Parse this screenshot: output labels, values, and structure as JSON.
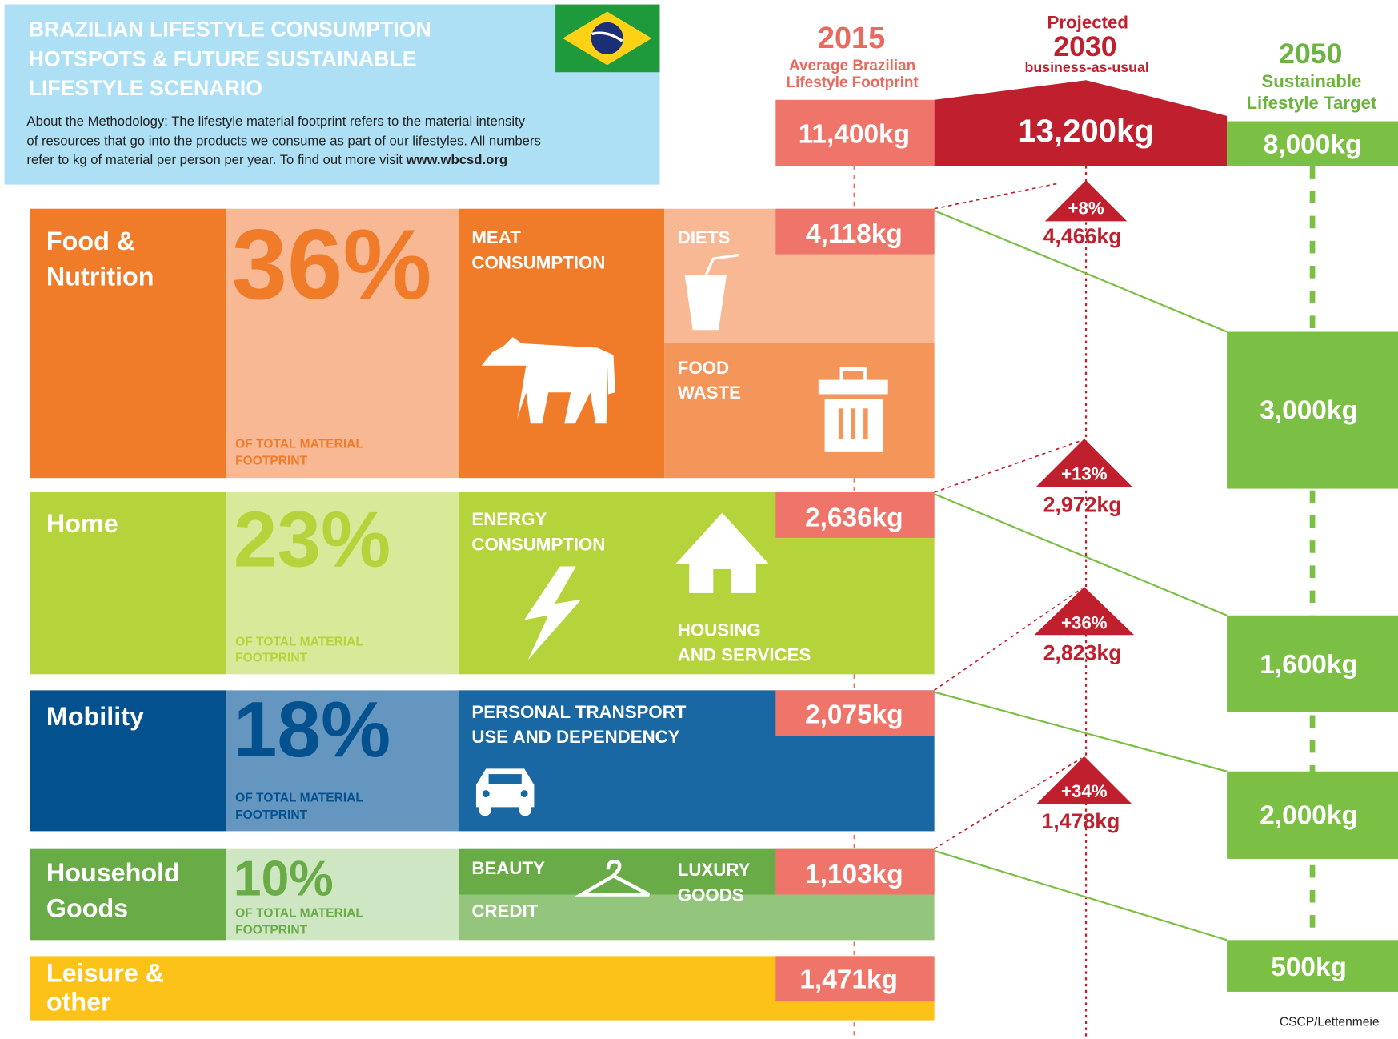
{
  "header": {
    "title_lines": [
      "BRAZILIAN LIFESTYLE CONSUMPTION",
      "HOTSPOTS & FUTURE SUSTAINABLE",
      "LIFESTYLE SCENARIO"
    ],
    "methodology_lines": [
      "About the Methodology: The lifestyle material footprint refers to the material intensity",
      "of resources that go into the products we consume as part of our lifestyles. All numbers",
      "refer to kg of material per person per year. To find out more visit "
    ],
    "link": "www.wbcsd.org"
  },
  "columns": [
    {
      "year": "2015",
      "label_lines": [
        "Average Brazilian",
        "Lifestyle Footprint"
      ],
      "total": "11,400kg"
    },
    {
      "pre": "Projected",
      "year": "2030",
      "label_lines": [
        "business-as-usual"
      ],
      "total": "13,200kg"
    },
    {
      "year": "2050",
      "label_lines": [
        "Sustainable",
        "Lifestyle Target"
      ],
      "total": "8,000kg"
    }
  ],
  "categories": [
    {
      "name_lines": [
        "Food &",
        "Nutrition"
      ],
      "percent": "36%",
      "note_lines": [
        "OF TOTAL MATERIAL",
        "FOOTPRINT"
      ],
      "hotspots": [
        [
          "MEAT",
          "CONSUMPTION"
        ],
        [
          "DIETS"
        ],
        [
          "FOOD",
          "WASTE"
        ]
      ],
      "value_2015": "4,118kg",
      "change": "+8%",
      "value_2030": "4,466kg",
      "value_2050": "3,000kg"
    },
    {
      "name_lines": [
        "Home"
      ],
      "percent": "23%",
      "note_lines": [
        "OF TOTAL MATERIAL",
        "FOOTPRINT"
      ],
      "hotspots": [
        [
          "ENERGY",
          "CONSUMPTION"
        ],
        [
          "HOUSING",
          "AND SERVICES"
        ]
      ],
      "value_2015": "2,636kg",
      "change": "+13%",
      "value_2030": "2,972kg",
      "value_2050": "1,600kg"
    },
    {
      "name_lines": [
        "Mobility"
      ],
      "percent": "18%",
      "note_lines": [
        "OF TOTAL MATERIAL",
        "FOOTPRINT"
      ],
      "hotspots": [
        [
          "PERSONAL TRANSPORT",
          "USE AND DEPENDENCY"
        ]
      ],
      "value_2015": "2,075kg",
      "change": "+36%",
      "value_2030": "2,823kg",
      "value_2050": "2,000kg"
    },
    {
      "name_lines": [
        "Household",
        "Goods"
      ],
      "percent": "10%",
      "note_lines": [
        "OF TOTAL MATERIAL",
        "FOOTPRINT"
      ],
      "hotspots": [
        [
          "BEAUTY"
        ],
        [
          "CREDIT"
        ],
        [
          "LUXURY",
          "GOODS"
        ]
      ],
      "value_2015": "1,103kg",
      "change": "+34%",
      "value_2030": "1,478kg",
      "value_2050": "500kg"
    },
    {
      "name_lines": [
        "Leisure &",
        "other"
      ],
      "value_2015": "1,471kg"
    }
  ],
  "credit": "CSCP/Lettenmeie"
}
